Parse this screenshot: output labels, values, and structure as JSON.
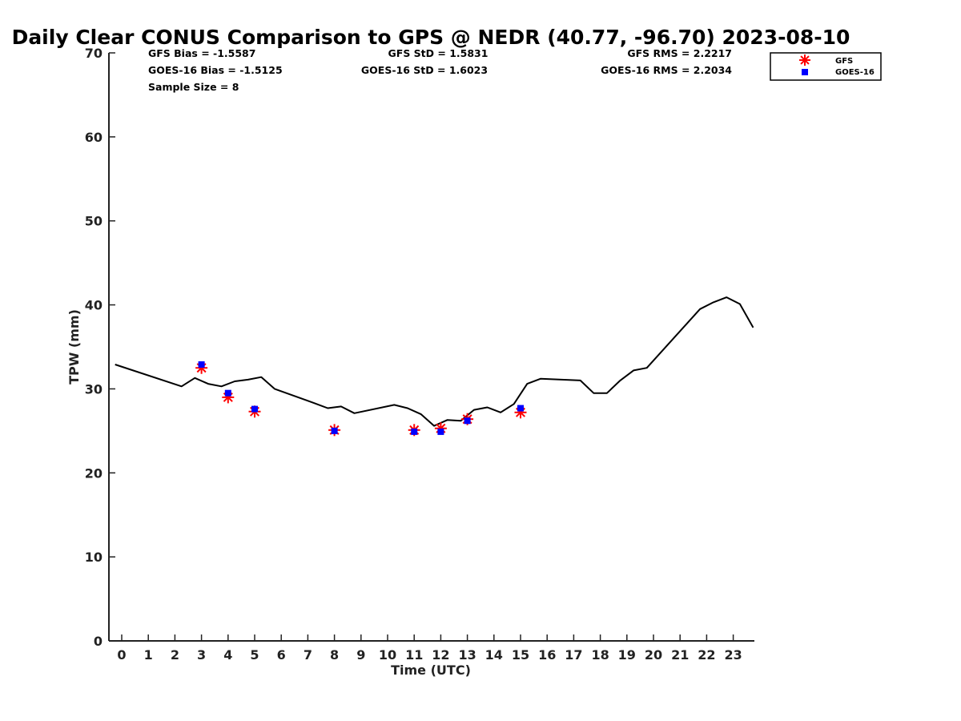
{
  "chart_data": {
    "type": "scatter",
    "title": "Daily Clear CONUS Comparison to GPS @ NEDR (40.77, -96.70) 2023-08-10",
    "xlabel": "Time (UTC)",
    "ylabel": "TPW (mm)",
    "xlim": [
      -0.5,
      23.75
    ],
    "ylim": [
      0,
      70
    ],
    "xticks": [
      0,
      1,
      2,
      3,
      4,
      5,
      6,
      7,
      8,
      9,
      10,
      11,
      12,
      13,
      14,
      15,
      16,
      17,
      18,
      19,
      20,
      21,
      22,
      23
    ],
    "yticks": [
      0,
      10,
      20,
      30,
      40,
      50,
      60,
      70
    ],
    "grid": false,
    "legend_position": "top-right",
    "stats": {
      "gfs_bias": "GFS Bias = -1.5587",
      "goes_bias": "GOES-16 Bias = -1.5125",
      "sample_size": "Sample Size = 8",
      "gfs_std": "GFS StD = 1.5831",
      "goes_std": "GOES-16 StD = 1.6023",
      "gfs_rms": "GFS RMS = 2.2217",
      "goes_rms": "GOES-16 RMS = 2.2034"
    },
    "series": [
      {
        "name": "",
        "kind": "line",
        "color": "#000000",
        "x": [
          -0.25,
          2.25,
          2.75,
          3.25,
          3.75,
          4.25,
          4.75,
          5.25,
          5.75,
          7.25,
          7.75,
          8.25,
          8.75,
          10.25,
          10.75,
          11.25,
          11.75,
          12.25,
          12.75,
          13.25,
          13.75,
          14.25,
          14.75,
          15.25,
          15.75,
          17.25,
          17.75,
          18.25,
          18.75,
          19.25,
          19.75,
          21.75,
          22.25,
          22.75,
          23.25,
          23.75
        ],
        "y": [
          32.9,
          30.3,
          31.3,
          30.6,
          30.3,
          30.9,
          31.1,
          31.4,
          30.0,
          28.3,
          27.7,
          27.9,
          27.1,
          28.1,
          27.7,
          27.0,
          25.6,
          26.3,
          26.2,
          27.5,
          27.8,
          27.2,
          28.2,
          30.6,
          31.2,
          31.0,
          29.5,
          29.5,
          31.0,
          32.2,
          32.5,
          39.5,
          40.3,
          40.9,
          40.1,
          37.3
        ]
      },
      {
        "name": "GFS",
        "kind": "marker",
        "marker": "asterisk",
        "color": "#ff0000",
        "x": [
          3.0,
          4.0,
          5.0,
          8.0,
          11.0,
          12.0,
          13.0,
          15.0
        ],
        "y": [
          32.5,
          29.0,
          27.3,
          25.1,
          25.1,
          25.3,
          26.4,
          27.2
        ]
      },
      {
        "name": "GOES-16",
        "kind": "marker",
        "marker": "square",
        "color": "#0000ff",
        "x": [
          3.0,
          4.0,
          5.0,
          8.0,
          11.0,
          12.0,
          13.0,
          15.0
        ],
        "y": [
          32.9,
          29.5,
          27.6,
          25.0,
          24.9,
          24.9,
          26.2,
          27.7
        ]
      }
    ]
  }
}
